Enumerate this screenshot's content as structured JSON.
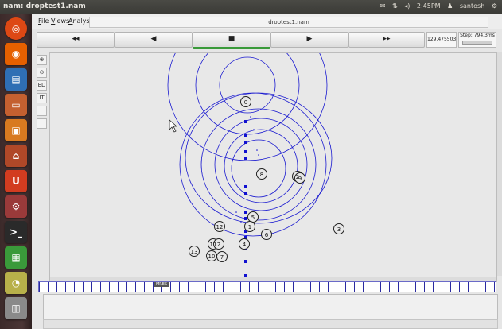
{
  "window_title": "nam: droptest1.nam",
  "tray": {
    "clock": "2:45PM",
    "user": "santosh"
  },
  "menu": {
    "file": "File",
    "views": "Views",
    "analysis": "Analysis"
  },
  "file_label": "droptest1.nam",
  "controls": {
    "rewind": "◂◂",
    "back": "◀",
    "stop": "■",
    "play": "▶",
    "forward": "▸▸"
  },
  "time_value": "129.475503",
  "step_value": "Step: 794.3ms",
  "tools": [
    "ED",
    "IT"
  ],
  "nodes": [
    "0",
    "1",
    "2",
    "3",
    "4",
    "5",
    "6",
    "7",
    "8",
    "9",
    "10",
    "11",
    "12",
    "13"
  ],
  "timeline_label": "MRES",
  "colors": {
    "ring": "#1a1ad0",
    "packet": "#1010d0"
  }
}
